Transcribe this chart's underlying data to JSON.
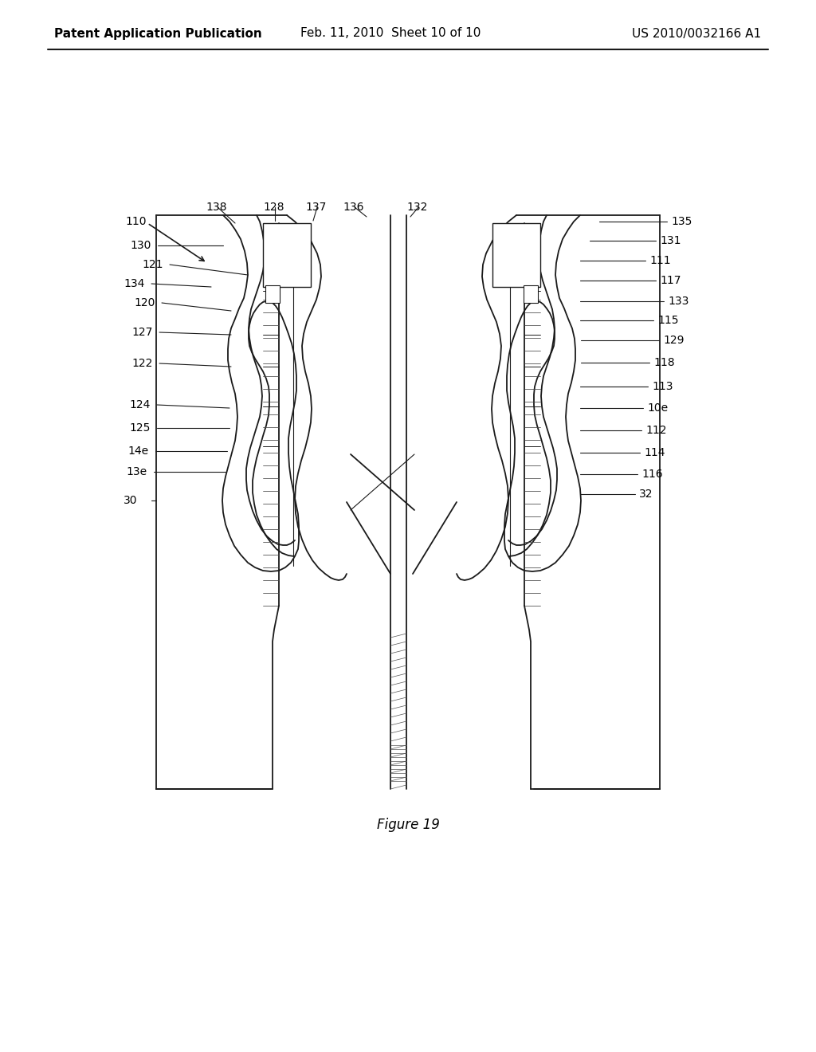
{
  "bg_color": "#ffffff",
  "header_left": "Patent Application Publication",
  "header_mid": "Feb. 11, 2010  Sheet 10 of 10",
  "header_right": "US 2010/0032166 A1",
  "figure_caption": "Figure 19",
  "title_fontsize": 11,
  "caption_fontsize": 12,
  "label_fontsize": 10,
  "line_color": "#1a1a1a",
  "lw_main": 1.3,
  "lw_thin": 0.8,
  "lw_leader": 0.8
}
